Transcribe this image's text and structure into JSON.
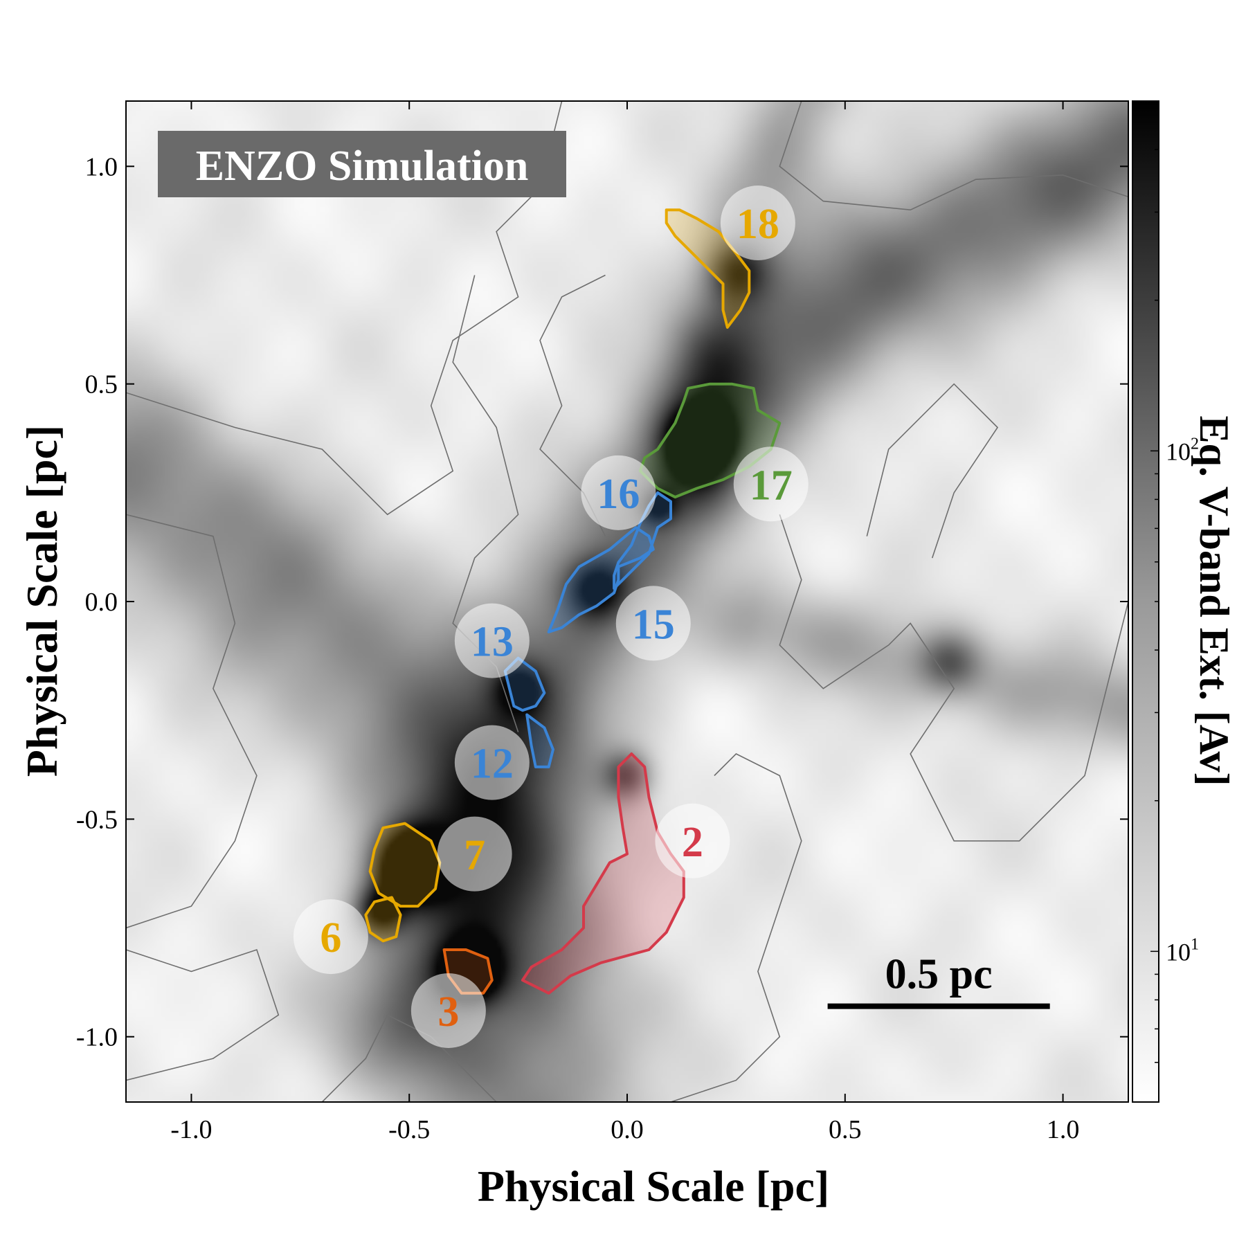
{
  "chart_data": {
    "type": "heatmap",
    "title": "ENZO Simulation",
    "xlabel": "Physical Scale [pc]",
    "ylabel": "Physical Scale [pc]",
    "xlim": [
      -1.15,
      1.15
    ],
    "ylim": [
      -1.15,
      1.15
    ],
    "x_ticks": [
      -1.0,
      -0.5,
      0.0,
      0.5,
      1.0
    ],
    "x_tick_labels": [
      "-1.0",
      "-0.5",
      "0.0",
      "0.5",
      "1.0"
    ],
    "y_ticks": [
      -1.0,
      -0.5,
      0.0,
      0.5,
      1.0
    ],
    "y_tick_labels": [
      "-1.0",
      "-0.5",
      "0.0",
      "0.5",
      "1.0"
    ],
    "colorbar": {
      "label": "Eq. V-band Ext. [Av]",
      "scale": "log",
      "range": [
        5,
        500
      ],
      "ticks": [
        10,
        100
      ],
      "tick_labels": [
        "10^1",
        "10^2"
      ],
      "colormap": "gray_r"
    },
    "scale_bar": {
      "label": "0.5 pc",
      "length_pc": 0.5,
      "x_start": 0.46,
      "x_end": 0.97,
      "y": -0.93
    },
    "density_peaks": [
      {
        "x": 0.17,
        "y": 0.37,
        "strength": 0.95,
        "width": 0.05
      },
      {
        "x": -0.07,
        "y": 0.03,
        "strength": 0.55,
        "width": 0.05
      },
      {
        "x": -0.5,
        "y": -0.61,
        "strength": 0.95,
        "width": 0.06
      },
      {
        "x": -0.36,
        "y": -0.85,
        "strength": 0.85,
        "width": 0.05
      },
      {
        "x": -0.57,
        "y": -0.71,
        "strength": 0.6,
        "width": 0.04
      },
      {
        "x": 0.0,
        "y": -0.4,
        "strength": 0.5,
        "width": 0.04
      },
      {
        "x": 0.25,
        "y": 0.76,
        "strength": 0.45,
        "width": 0.05
      },
      {
        "x": 0.74,
        "y": -0.14,
        "strength": 0.4,
        "width": 0.05
      },
      {
        "x": -0.25,
        "y": -0.2,
        "strength": 0.4,
        "width": 0.04
      },
      {
        "x": 0.07,
        "y": 0.22,
        "strength": 0.4,
        "width": 0.03
      }
    ],
    "filaments": [
      {
        "points": [
          [
            -1.15,
            0.3
          ],
          [
            -0.7,
            -0.05
          ],
          [
            -0.4,
            -0.35
          ],
          [
            -0.25,
            -0.6
          ],
          [
            -0.2,
            -0.95
          ],
          [
            -0.2,
            -1.15
          ]
        ],
        "width": 0.16,
        "strength": 0.45
      },
      {
        "points": [
          [
            -0.5,
            -0.95
          ],
          [
            -0.3,
            -0.4
          ],
          [
            -0.15,
            -0.1
          ],
          [
            0.05,
            0.2
          ],
          [
            0.25,
            0.5
          ],
          [
            0.6,
            0.75
          ],
          [
            1.15,
            1.05
          ]
        ],
        "width": 0.13,
        "strength": 0.55
      },
      {
        "points": [
          [
            0.15,
            0.3
          ],
          [
            0.2,
            0.6
          ],
          [
            0.3,
            0.9
          ],
          [
            0.4,
            1.15
          ]
        ],
        "width": 0.08,
        "strength": 0.35
      },
      {
        "points": [
          [
            0.3,
            -0.05
          ],
          [
            0.6,
            -0.12
          ],
          [
            0.9,
            -0.2
          ],
          [
            1.15,
            -0.25
          ]
        ],
        "width": 0.08,
        "strength": 0.3
      }
    ],
    "clumps": [
      {
        "id": "18",
        "label": "18",
        "color": "#e6a800",
        "label_x": 0.3,
        "label_y": 0.87,
        "contour": [
          [
            0.09,
            0.9
          ],
          [
            0.12,
            0.9
          ],
          [
            0.16,
            0.88
          ],
          [
            0.21,
            0.85
          ],
          [
            0.25,
            0.8
          ],
          [
            0.28,
            0.76
          ],
          [
            0.28,
            0.71
          ],
          [
            0.26,
            0.67
          ],
          [
            0.23,
            0.63
          ],
          [
            0.22,
            0.67
          ],
          [
            0.22,
            0.73
          ],
          [
            0.17,
            0.78
          ],
          [
            0.11,
            0.84
          ],
          [
            0.09,
            0.87
          ]
        ]
      },
      {
        "id": "17",
        "label": "17",
        "color": "#5a9a3a",
        "label_x": 0.33,
        "label_y": 0.27,
        "contour": [
          [
            0.14,
            0.49
          ],
          [
            0.19,
            0.5
          ],
          [
            0.24,
            0.5
          ],
          [
            0.29,
            0.49
          ],
          [
            0.3,
            0.44
          ],
          [
            0.35,
            0.41
          ],
          [
            0.33,
            0.35
          ],
          [
            0.28,
            0.31
          ],
          [
            0.22,
            0.28
          ],
          [
            0.16,
            0.26
          ],
          [
            0.11,
            0.24
          ],
          [
            0.07,
            0.26
          ],
          [
            0.03,
            0.3
          ],
          [
            0.04,
            0.33
          ],
          [
            0.07,
            0.35
          ],
          [
            0.11,
            0.41
          ],
          [
            0.13,
            0.46
          ]
        ]
      },
      {
        "id": "16",
        "label": "16",
        "color": "#3a84d6",
        "label_x": -0.02,
        "label_y": 0.25,
        "contour": [
          [
            0.07,
            0.25
          ],
          [
            0.1,
            0.23
          ],
          [
            0.1,
            0.19
          ],
          [
            0.07,
            0.17
          ],
          [
            0.06,
            0.14
          ],
          [
            0.05,
            0.11
          ],
          [
            0.02,
            0.08
          ],
          [
            -0.01,
            0.05
          ],
          [
            -0.03,
            0.03
          ],
          [
            -0.03,
            0.06
          ],
          [
            -0.02,
            0.09
          ],
          [
            0.01,
            0.13
          ],
          [
            0.03,
            0.18
          ],
          [
            0.05,
            0.22
          ]
        ]
      },
      {
        "id": "15",
        "label": "15",
        "color": "#3a84d6",
        "label_x": 0.06,
        "label_y": -0.05,
        "contour": [
          [
            -0.02,
            0.08
          ],
          [
            0.03,
            0.1
          ],
          [
            0.06,
            0.12
          ],
          [
            0.05,
            0.15
          ],
          [
            0.02,
            0.17
          ],
          [
            -0.04,
            0.12
          ],
          [
            -0.11,
            0.08
          ],
          [
            -0.14,
            0.04
          ],
          [
            -0.16,
            -0.02
          ],
          [
            -0.18,
            -0.07
          ],
          [
            -0.15,
            -0.06
          ],
          [
            -0.11,
            -0.03
          ],
          [
            -0.07,
            -0.01
          ],
          [
            -0.03,
            0.02
          ],
          [
            -0.02,
            0.05
          ]
        ]
      },
      {
        "id": "13",
        "label": "13",
        "color": "#3a84d6",
        "label_x": -0.31,
        "label_y": -0.09,
        "contour": [
          [
            -0.25,
            -0.13
          ],
          [
            -0.21,
            -0.16
          ],
          [
            -0.19,
            -0.21
          ],
          [
            -0.21,
            -0.24
          ],
          [
            -0.24,
            -0.25
          ],
          [
            -0.26,
            -0.24
          ],
          [
            -0.27,
            -0.2
          ],
          [
            -0.28,
            -0.16
          ]
        ]
      },
      {
        "id": "12",
        "label": "12",
        "color": "#3a84d6",
        "label_x": -0.31,
        "label_y": -0.37,
        "contour": [
          [
            -0.23,
            -0.26
          ],
          [
            -0.19,
            -0.29
          ],
          [
            -0.17,
            -0.34
          ],
          [
            -0.18,
            -0.38
          ],
          [
            -0.21,
            -0.38
          ],
          [
            -0.22,
            -0.33
          ]
        ]
      },
      {
        "id": "2",
        "label": "2",
        "color": "#d43a4a",
        "label_x": 0.15,
        "label_y": -0.55,
        "contour": [
          [
            -0.02,
            -0.38
          ],
          [
            0.01,
            -0.35
          ],
          [
            0.04,
            -0.38
          ],
          [
            0.05,
            -0.45
          ],
          [
            0.07,
            -0.53
          ],
          [
            0.1,
            -0.58
          ],
          [
            0.13,
            -0.62
          ],
          [
            0.13,
            -0.68
          ],
          [
            0.09,
            -0.76
          ],
          [
            0.05,
            -0.8
          ],
          [
            -0.06,
            -0.83
          ],
          [
            -0.13,
            -0.86
          ],
          [
            -0.18,
            -0.9
          ],
          [
            -0.24,
            -0.87
          ],
          [
            -0.22,
            -0.84
          ],
          [
            -0.15,
            -0.8
          ],
          [
            -0.1,
            -0.75
          ],
          [
            -0.1,
            -0.7
          ],
          [
            -0.07,
            -0.65
          ],
          [
            -0.04,
            -0.6
          ],
          [
            0.0,
            -0.58
          ],
          [
            -0.01,
            -0.52
          ],
          [
            -0.02,
            -0.45
          ]
        ]
      },
      {
        "id": "7",
        "label": "7",
        "color": "#e6a800",
        "label_x": -0.35,
        "label_y": -0.58,
        "contour": [
          [
            -0.56,
            -0.52
          ],
          [
            -0.51,
            -0.51
          ],
          [
            -0.45,
            -0.55
          ],
          [
            -0.43,
            -0.6
          ],
          [
            -0.44,
            -0.66
          ],
          [
            -0.48,
            -0.7
          ],
          [
            -0.52,
            -0.7
          ],
          [
            -0.57,
            -0.67
          ],
          [
            -0.59,
            -0.62
          ],
          [
            -0.58,
            -0.57
          ]
        ]
      },
      {
        "id": "6",
        "label": "6",
        "color": "#e6a800",
        "label_x": -0.68,
        "label_y": -0.77,
        "contour": [
          [
            -0.58,
            -0.69
          ],
          [
            -0.54,
            -0.68
          ],
          [
            -0.52,
            -0.72
          ],
          [
            -0.53,
            -0.77
          ],
          [
            -0.56,
            -0.78
          ],
          [
            -0.59,
            -0.76
          ],
          [
            -0.6,
            -0.72
          ]
        ]
      },
      {
        "id": "3",
        "label": "3",
        "color": "#e06010",
        "label_x": -0.41,
        "label_y": -0.94,
        "contour": [
          [
            -0.42,
            -0.8
          ],
          [
            -0.37,
            -0.8
          ],
          [
            -0.32,
            -0.82
          ],
          [
            -0.31,
            -0.87
          ],
          [
            -0.33,
            -0.9
          ],
          [
            -0.38,
            -0.9
          ],
          [
            -0.41,
            -0.86
          ]
        ]
      }
    ],
    "grey_contours": [
      [
        [
          -0.15,
          1.15
        ],
        [
          -0.2,
          0.95
        ],
        [
          -0.3,
          0.85
        ],
        [
          -0.25,
          0.7
        ],
        [
          -0.4,
          0.6
        ],
        [
          -0.45,
          0.45
        ],
        [
          -0.4,
          0.3
        ],
        [
          -0.55,
          0.2
        ],
        [
          -0.7,
          0.35
        ],
        [
          -0.9,
          0.4
        ],
        [
          -1.15,
          0.48
        ]
      ],
      [
        [
          0.4,
          1.15
        ],
        [
          0.35,
          1.0
        ],
        [
          0.45,
          0.92
        ],
        [
          0.65,
          0.9
        ],
        [
          0.8,
          0.97
        ],
        [
          1.0,
          0.98
        ],
        [
          1.15,
          0.93
        ]
      ],
      [
        [
          -0.35,
          0.75
        ],
        [
          -0.4,
          0.55
        ],
        [
          -0.3,
          0.4
        ],
        [
          -0.25,
          0.2
        ],
        [
          -0.35,
          0.1
        ],
        [
          -0.4,
          -0.05
        ],
        [
          -0.3,
          -0.15
        ],
        [
          -0.25,
          -0.3
        ]
      ],
      [
        [
          -0.05,
          0.75
        ],
        [
          -0.15,
          0.7
        ],
        [
          -0.2,
          0.6
        ],
        [
          -0.15,
          0.45
        ],
        [
          -0.2,
          0.35
        ],
        [
          -0.1,
          0.25
        ],
        [
          -0.05,
          0.15
        ]
      ],
      [
        [
          0.35,
          0.2
        ],
        [
          0.4,
          0.05
        ],
        [
          0.35,
          -0.1
        ],
        [
          0.45,
          -0.2
        ],
        [
          0.6,
          -0.1
        ],
        [
          0.65,
          -0.05
        ],
        [
          0.75,
          -0.2
        ],
        [
          0.65,
          -0.35
        ],
        [
          0.75,
          -0.55
        ],
        [
          0.9,
          -0.55
        ],
        [
          1.05,
          -0.4
        ],
        [
          1.1,
          -0.2
        ],
        [
          1.15,
          0.0
        ]
      ],
      [
        [
          0.55,
          0.15
        ],
        [
          0.6,
          0.35
        ],
        [
          0.75,
          0.5
        ],
        [
          0.85,
          0.4
        ],
        [
          0.75,
          0.25
        ],
        [
          0.7,
          0.1
        ]
      ],
      [
        [
          -1.15,
          0.2
        ],
        [
          -0.95,
          0.15
        ],
        [
          -0.9,
          -0.05
        ],
        [
          -0.95,
          -0.2
        ],
        [
          -0.85,
          -0.4
        ],
        [
          -0.9,
          -0.55
        ],
        [
          -1.0,
          -0.7
        ],
        [
          -1.15,
          -0.75
        ]
      ],
      [
        [
          0.2,
          -0.4
        ],
        [
          0.25,
          -0.35
        ],
        [
          0.35,
          -0.4
        ],
        [
          0.4,
          -0.55
        ],
        [
          0.35,
          -0.7
        ],
        [
          0.3,
          -0.85
        ],
        [
          0.35,
          -1.0
        ],
        [
          0.25,
          -1.1
        ],
        [
          0.1,
          -1.15
        ]
      ],
      [
        [
          -0.7,
          -1.15
        ],
        [
          -0.6,
          -1.05
        ],
        [
          -0.55,
          -0.95
        ],
        [
          -0.45,
          -1.0
        ],
        [
          -0.35,
          -1.1
        ],
        [
          -0.3,
          -1.15
        ]
      ],
      [
        [
          -1.15,
          -0.8
        ],
        [
          -1.0,
          -0.85
        ],
        [
          -0.85,
          -0.8
        ],
        [
          -0.8,
          -0.95
        ],
        [
          -0.95,
          -1.05
        ],
        [
          -1.15,
          -1.1
        ]
      ]
    ]
  }
}
